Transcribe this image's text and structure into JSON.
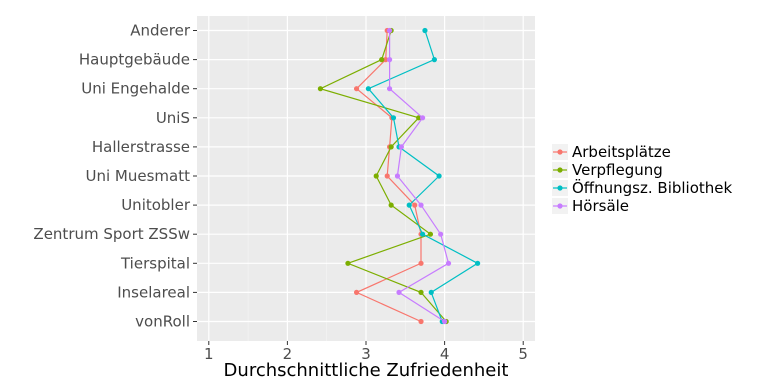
{
  "chart_data": {
    "type": "line",
    "orientation": "horizontal",
    "title": "",
    "xlabel": "Durchschnittliche Zufriedenheit",
    "ylabel": "",
    "xlim": [
      0.85,
      5.15
    ],
    "x_ticks": [
      "1",
      "2",
      "3",
      "4",
      "5"
    ],
    "categories": [
      "Anderer",
      "Hauptgebäude",
      "Uni Engehalde",
      "UniS",
      "Hallerstrasse",
      "Uni Muesmatt",
      "Unitobler",
      "Zentrum Sport ZSSw",
      "Tierspital",
      "Inselareal",
      "vonRoll"
    ],
    "grid": true,
    "legend_position": "right",
    "series": [
      {
        "name": "Arbeitsplätze",
        "color": "#F8766D",
        "values": [
          3.27,
          3.25,
          2.88,
          3.33,
          3.3,
          3.27,
          3.62,
          3.7,
          3.7,
          2.88,
          3.7
        ]
      },
      {
        "name": "Verpflegung",
        "color": "#7CAE00",
        "values": [
          3.32,
          3.2,
          2.42,
          3.67,
          3.32,
          3.13,
          3.32,
          3.82,
          2.77,
          3.7,
          4.02
        ]
      },
      {
        "name": "Öffnungsz. Bibliothek",
        "color": "#00BFC4",
        "values": [
          3.75,
          3.87,
          3.03,
          3.35,
          3.42,
          3.93,
          3.55,
          3.72,
          4.42,
          3.83,
          3.97
        ]
      },
      {
        "name": "Hörsäle",
        "color": "#C77CFF",
        "values": [
          3.3,
          3.3,
          3.3,
          3.72,
          3.45,
          3.4,
          3.7,
          3.95,
          4.05,
          3.42,
          4.0
        ]
      }
    ]
  }
}
